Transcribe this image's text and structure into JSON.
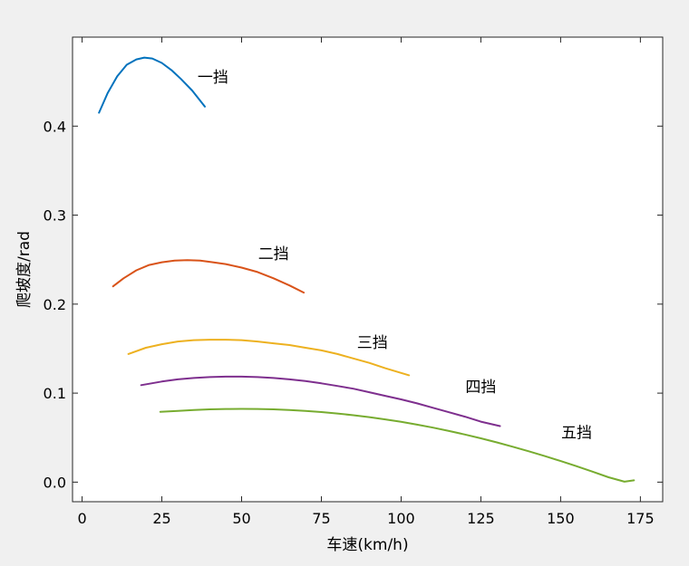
{
  "chart_data": {
    "type": "line",
    "xlabel": "车速(km/h)",
    "ylabel": "爬坡度/rad",
    "xlim": [
      -3,
      182
    ],
    "ylim": [
      -0.022,
      0.5
    ],
    "xticks": [
      0,
      25,
      50,
      75,
      100,
      125,
      150,
      175
    ],
    "yticks": [
      0.0,
      0.1,
      0.2,
      0.3,
      0.4
    ],
    "xtick_labels": [
      "0",
      "25",
      "50",
      "75",
      "100",
      "125",
      "150",
      "175"
    ],
    "ytick_labels": [
      "0.0",
      "0.1",
      "0.2",
      "0.3",
      "0.4"
    ],
    "grid": false,
    "legend": "none",
    "series": [
      {
        "name": "一挡",
        "color": "#0072BD",
        "label_at": [
          41,
          0.455
        ],
        "points": [
          [
            5.3,
            0.415
          ],
          [
            8,
            0.437
          ],
          [
            11,
            0.456
          ],
          [
            14,
            0.469
          ],
          [
            17,
            0.475
          ],
          [
            19.5,
            0.477
          ],
          [
            22,
            0.476
          ],
          [
            25,
            0.471
          ],
          [
            28,
            0.463
          ],
          [
            31,
            0.453
          ],
          [
            34.5,
            0.44
          ],
          [
            38.5,
            0.422
          ]
        ]
      },
      {
        "name": "二挡",
        "color": "#D95319",
        "label_at": [
          60,
          0.257
        ],
        "points": [
          [
            9.7,
            0.22
          ],
          [
            13,
            0.229
          ],
          [
            17,
            0.238
          ],
          [
            21,
            0.244
          ],
          [
            25,
            0.247
          ],
          [
            29,
            0.249
          ],
          [
            33,
            0.2495
          ],
          [
            37,
            0.249
          ],
          [
            41,
            0.247
          ],
          [
            45,
            0.245
          ],
          [
            50,
            0.241
          ],
          [
            55,
            0.236
          ],
          [
            60,
            0.229
          ],
          [
            65,
            0.221
          ],
          [
            69.5,
            0.213
          ]
        ]
      },
      {
        "name": "三挡",
        "color": "#EDB120",
        "label_at": [
          91,
          0.157
        ],
        "points": [
          [
            14.5,
            0.144
          ],
          [
            20,
            0.151
          ],
          [
            25,
            0.155
          ],
          [
            30,
            0.158
          ],
          [
            35,
            0.1595
          ],
          [
            40,
            0.16
          ],
          [
            45,
            0.16
          ],
          [
            50,
            0.1595
          ],
          [
            55,
            0.158
          ],
          [
            60,
            0.156
          ],
          [
            65,
            0.154
          ],
          [
            70,
            0.151
          ],
          [
            75,
            0.148
          ],
          [
            80,
            0.144
          ],
          [
            85,
            0.139
          ],
          [
            90,
            0.134
          ],
          [
            95,
            0.128
          ],
          [
            102.5,
            0.12
          ]
        ]
      },
      {
        "name": "四挡",
        "color": "#7E2F8E",
        "label_at": [
          125,
          0.107
        ],
        "points": [
          [
            18.5,
            0.109
          ],
          [
            25,
            0.113
          ],
          [
            30,
            0.1155
          ],
          [
            35,
            0.117
          ],
          [
            40,
            0.118
          ],
          [
            45,
            0.1185
          ],
          [
            50,
            0.1185
          ],
          [
            55,
            0.118
          ],
          [
            60,
            0.117
          ],
          [
            65,
            0.1155
          ],
          [
            70,
            0.1135
          ],
          [
            75,
            0.111
          ],
          [
            80,
            0.108
          ],
          [
            85,
            0.105
          ],
          [
            90,
            0.101
          ],
          [
            95,
            0.097
          ],
          [
            100,
            0.093
          ],
          [
            105,
            0.0885
          ],
          [
            110,
            0.0835
          ],
          [
            115,
            0.0785
          ],
          [
            120,
            0.0735
          ],
          [
            125,
            0.068
          ],
          [
            131,
            0.063
          ]
        ]
      },
      {
        "name": "五挡",
        "color": "#77AC30",
        "label_at": [
          155,
          0.056
        ],
        "points": [
          [
            24.5,
            0.079
          ],
          [
            30,
            0.08
          ],
          [
            35,
            0.081
          ],
          [
            40,
            0.0818
          ],
          [
            45,
            0.0822
          ],
          [
            50,
            0.0823
          ],
          [
            55,
            0.0822
          ],
          [
            60,
            0.0818
          ],
          [
            65,
            0.081
          ],
          [
            70,
            0.08
          ],
          [
            75,
            0.0787
          ],
          [
            80,
            0.0771
          ],
          [
            85,
            0.0752
          ],
          [
            90,
            0.073
          ],
          [
            95,
            0.0705
          ],
          [
            100,
            0.0677
          ],
          [
            105,
            0.0646
          ],
          [
            110,
            0.0612
          ],
          [
            115,
            0.0575
          ],
          [
            120,
            0.0535
          ],
          [
            125,
            0.0492
          ],
          [
            130,
            0.0446
          ],
          [
            135,
            0.0398
          ],
          [
            140,
            0.0347
          ],
          [
            145,
            0.0293
          ],
          [
            150,
            0.0237
          ],
          [
            155,
            0.0179
          ],
          [
            160,
            0.0118
          ],
          [
            165,
            0.0055
          ],
          [
            170,
            0.0005
          ],
          [
            173,
            0.002
          ]
        ]
      }
    ]
  }
}
